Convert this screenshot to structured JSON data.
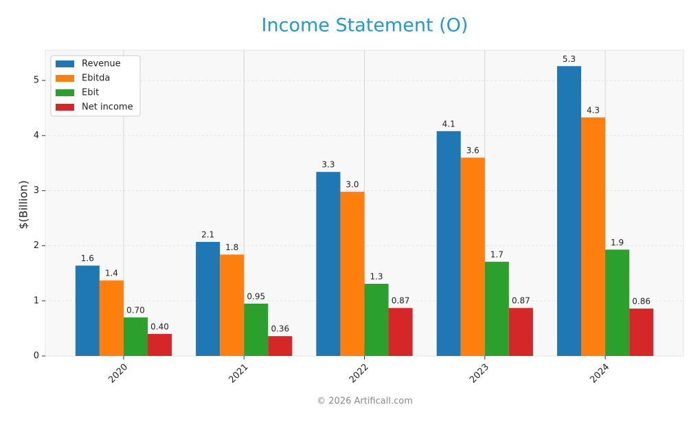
{
  "chart_data": {
    "type": "bar",
    "title": "Income Statement (O)",
    "ylabel": "$(Billion)",
    "footer": "© 2026 Artificall.com",
    "categories": [
      "2020",
      "2021",
      "2022",
      "2023",
      "2024"
    ],
    "series": [
      {
        "name": "Revenue",
        "color": "#1f77b4",
        "values": [
          1.64,
          2.07,
          3.34,
          4.08,
          5.26
        ],
        "value_labels": [
          "1.6",
          "2.1",
          "3.3",
          "4.1",
          "5.3"
        ]
      },
      {
        "name": "Ebitda",
        "color": "#ff7f0e",
        "values": [
          1.37,
          1.84,
          2.98,
          3.6,
          4.33
        ],
        "value_labels": [
          "1.4",
          "1.8",
          "3.0",
          "3.6",
          "4.3"
        ]
      },
      {
        "name": "Ebit",
        "color": "#2ca02c",
        "values": [
          0.7,
          0.95,
          1.31,
          1.71,
          1.93
        ],
        "value_labels": [
          "0.70",
          "0.95",
          "1.3",
          "1.7",
          "1.9"
        ]
      },
      {
        "name": "Net income",
        "color": "#d62728",
        "values": [
          0.4,
          0.36,
          0.87,
          0.87,
          0.86
        ],
        "value_labels": [
          "0.40",
          "0.36",
          "0.87",
          "0.87",
          "0.86"
        ]
      }
    ],
    "ylim": [
      0,
      5.55
    ],
    "yticks": [
      0,
      1,
      2,
      3,
      4,
      5
    ],
    "grid": true,
    "legend": "upper left"
  }
}
